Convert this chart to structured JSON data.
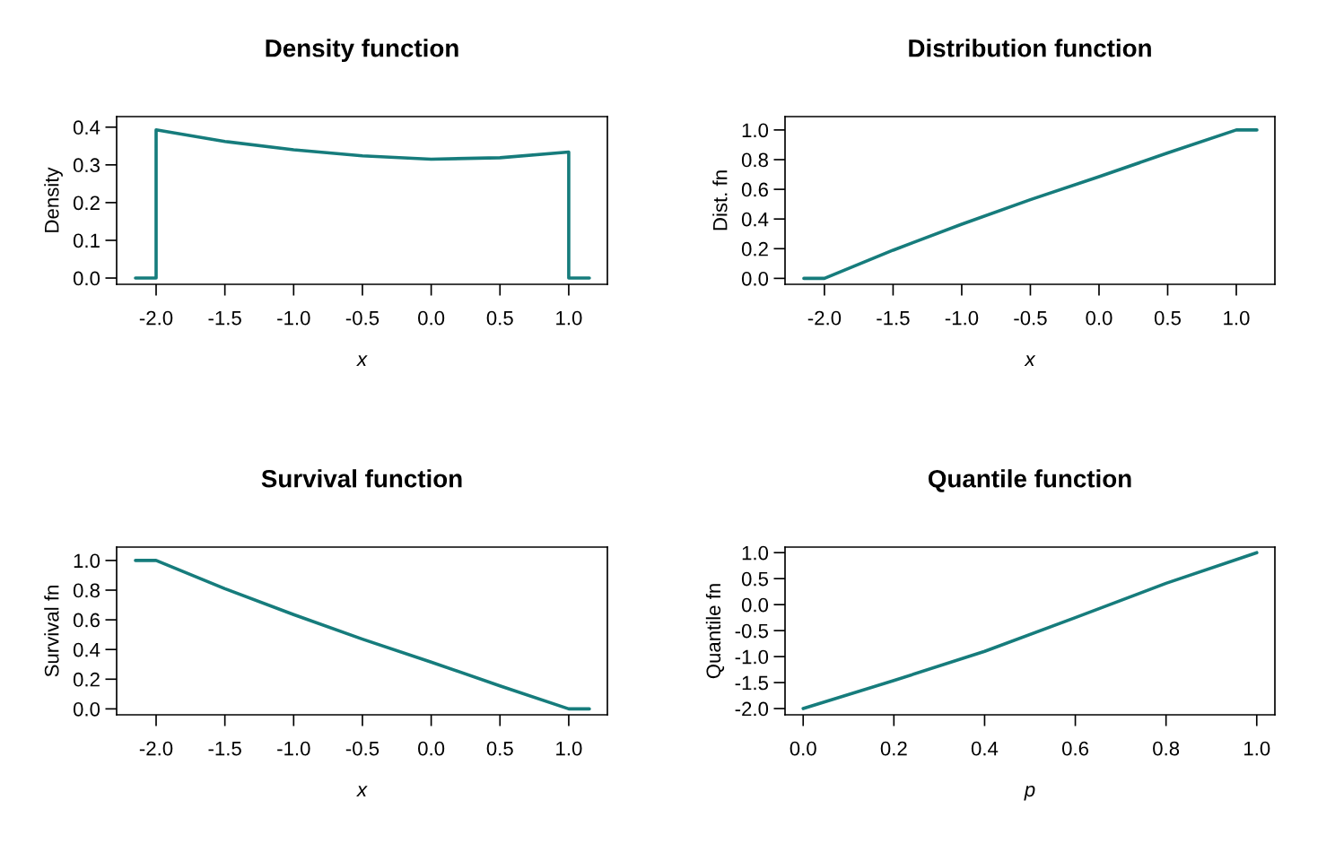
{
  "chart_data": [
    {
      "type": "line",
      "title": "Density function",
      "xlabel": "x",
      "ylabel": "Density",
      "marker": "none",
      "line_style": "solid",
      "series": [
        {
          "color": "#167c7c",
          "x": [
            -2.15,
            -2.0,
            -2.0,
            -1.5,
            -1.0,
            -0.5,
            0.0,
            0.5,
            1.0,
            1.0,
            1.15
          ],
          "values": [
            0,
            0,
            0.393,
            0.362,
            0.34,
            0.324,
            0.315,
            0.319,
            0.334,
            0,
            0
          ]
        }
      ],
      "xlim": [
        -2.287,
        1.281
      ],
      "ylim": [
        -0.0166,
        0.428
      ],
      "xticks": [
        {
          "value": -2,
          "label": "-2.0"
        },
        {
          "value": -1.5,
          "label": "-1.5"
        },
        {
          "value": -1,
          "label": "-1.0"
        },
        {
          "value": -0.5,
          "label": "-0.5"
        },
        {
          "value": 0,
          "label": "0.0"
        },
        {
          "value": 0.5,
          "label": "0.5"
        },
        {
          "value": 1,
          "label": "1.0"
        }
      ],
      "yticks": [
        {
          "value": 0,
          "label": "0.0"
        },
        {
          "value": 0.1,
          "label": "0.1"
        },
        {
          "value": 0.2,
          "label": "0.2"
        },
        {
          "value": 0.3,
          "label": "0.3"
        },
        {
          "value": 0.4,
          "label": "0.4"
        }
      ]
    },
    {
      "type": "line",
      "title": "Distribution function",
      "xlabel": "x",
      "ylabel": "Dist. fn",
      "marker": "none",
      "line_style": "solid",
      "series": [
        {
          "color": "#167c7c",
          "x": [
            -2.15,
            -2.0,
            -1.5,
            -1.0,
            -0.5,
            0.0,
            0.5,
            1.0,
            1.15
          ],
          "values": [
            0,
            0,
            0.19,
            0.365,
            0.53,
            0.685,
            0.845,
            1.0,
            1.0
          ]
        }
      ],
      "xlim": [
        -2.287,
        1.281
      ],
      "ylim": [
        -0.04,
        1.09
      ],
      "xticks": [
        {
          "value": -2,
          "label": "-2.0"
        },
        {
          "value": -1.5,
          "label": "-1.5"
        },
        {
          "value": -1,
          "label": "-1.0"
        },
        {
          "value": -0.5,
          "label": "-0.5"
        },
        {
          "value": 0,
          "label": "0.0"
        },
        {
          "value": 0.5,
          "label": "0.5"
        },
        {
          "value": 1,
          "label": "1.0"
        }
      ],
      "yticks": [
        {
          "value": 0,
          "label": "0.0"
        },
        {
          "value": 0.2,
          "label": "0.2"
        },
        {
          "value": 0.4,
          "label": "0.4"
        },
        {
          "value": 0.6,
          "label": "0.6"
        },
        {
          "value": 0.8,
          "label": "0.8"
        },
        {
          "value": 1,
          "label": "1.0"
        }
      ]
    },
    {
      "type": "line",
      "title": "Survival function",
      "xlabel": "x",
      "ylabel": "Survival fn",
      "marker": "none",
      "line_style": "solid",
      "series": [
        {
          "color": "#167c7c",
          "x": [
            -2.15,
            -2.0,
            -1.5,
            -1.0,
            -0.5,
            0.0,
            0.5,
            1.0,
            1.15
          ],
          "values": [
            1.0,
            1.0,
            0.81,
            0.635,
            0.47,
            0.315,
            0.155,
            0,
            0
          ]
        }
      ],
      "xlim": [
        -2.287,
        1.281
      ],
      "ylim": [
        -0.04,
        1.09
      ],
      "xticks": [
        {
          "value": -2,
          "label": "-2.0"
        },
        {
          "value": -1.5,
          "label": "-1.5"
        },
        {
          "value": -1,
          "label": "-1.0"
        },
        {
          "value": -0.5,
          "label": "-0.5"
        },
        {
          "value": 0,
          "label": "0.0"
        },
        {
          "value": 0.5,
          "label": "0.5"
        },
        {
          "value": 1,
          "label": "1.0"
        }
      ],
      "yticks": [
        {
          "value": 0,
          "label": "0.0"
        },
        {
          "value": 0.2,
          "label": "0.2"
        },
        {
          "value": 0.4,
          "label": "0.4"
        },
        {
          "value": 0.6,
          "label": "0.6"
        },
        {
          "value": 0.8,
          "label": "0.8"
        },
        {
          "value": 1,
          "label": "1.0"
        }
      ]
    },
    {
      "type": "line",
      "title": "Quantile function",
      "xlabel": "p",
      "ylabel": "Quantile fn",
      "marker": "none",
      "line_style": "solid",
      "series": [
        {
          "color": "#167c7c",
          "x": [
            0,
            0.2,
            0.4,
            0.6,
            0.8,
            1.0
          ],
          "values": [
            -2.0,
            -1.46,
            -0.9,
            -0.25,
            0.41,
            1.0
          ]
        }
      ],
      "xlim": [
        -0.04,
        1.04
      ],
      "ylim": [
        -2.12,
        1.107
      ],
      "xticks": [
        {
          "value": 0,
          "label": "0.0"
        },
        {
          "value": 0.2,
          "label": "0.2"
        },
        {
          "value": 0.4,
          "label": "0.4"
        },
        {
          "value": 0.6,
          "label": "0.6"
        },
        {
          "value": 0.8,
          "label": "0.8"
        },
        {
          "value": 1,
          "label": "1.0"
        }
      ],
      "yticks": [
        {
          "value": -2,
          "label": "-2.0"
        },
        {
          "value": -1.5,
          "label": "-1.5"
        },
        {
          "value": -1,
          "label": "-1.0"
        },
        {
          "value": -0.5,
          "label": "-0.5"
        },
        {
          "value": 0,
          "label": "0.0"
        },
        {
          "value": 0.5,
          "label": "0.5"
        },
        {
          "value": 1,
          "label": "1.0"
        }
      ]
    }
  ]
}
